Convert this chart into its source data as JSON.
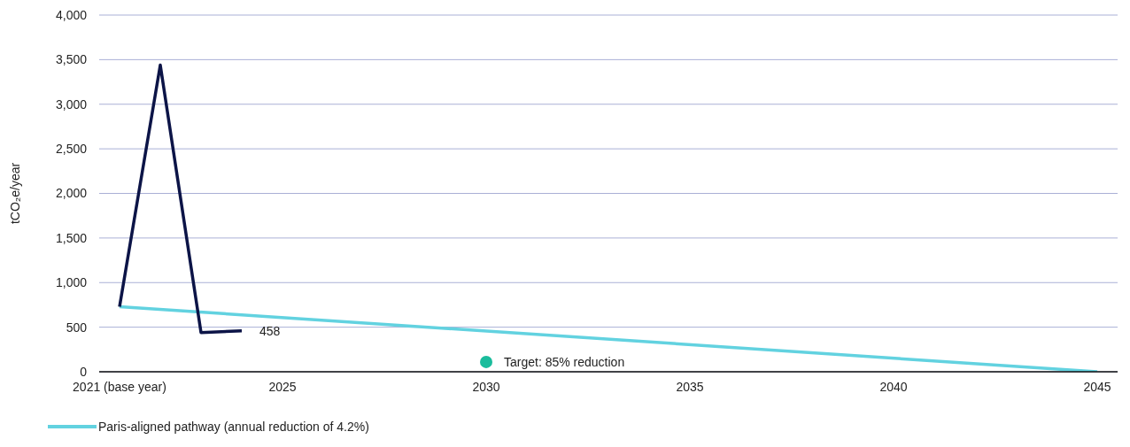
{
  "chart_data": {
    "type": "line",
    "ylabel": "tCO₂e/year",
    "xlim": [
      2020.5,
      2045.5
    ],
    "xticks": [
      {
        "value": 2021,
        "label": "2021 (base year)"
      },
      2025,
      2030,
      2035,
      2040,
      2045
    ],
    "ylim": [
      0,
      4000
    ],
    "yticks": [
      0,
      500,
      {
        "value": 1000,
        "label": "1,000"
      },
      {
        "value": 1500,
        "label": "1,500"
      },
      {
        "value": 2000,
        "label": "2,000"
      },
      {
        "value": 2500,
        "label": "2,500"
      },
      {
        "value": 3000,
        "label": "3,000"
      },
      {
        "value": 3500,
        "label": "3,500"
      },
      {
        "value": 4000,
        "label": "4,000"
      }
    ],
    "grid": "y",
    "legend": "bottom left",
    "marker": "none",
    "series": [
      {
        "name": "Paris-aligned pathway (annual reduction of 4.2%)",
        "color": "#62d2e0",
        "x": [
          2021,
          2045
        ],
        "values": [
          730,
          0
        ]
      },
      {
        "color": "#0c1447",
        "x": [
          2021,
          2022,
          2023,
          2024
        ],
        "values": [
          730,
          3440,
          440,
          458
        ],
        "value_labels": [
          null,
          null,
          null,
          "458"
        ]
      },
      {
        "type": "scatter",
        "color": "#1abc9c",
        "x": [
          2030
        ],
        "values": [
          110
        ],
        "marker": "circle"
      }
    ],
    "annotations": [
      {
        "text": "Target: 85% reduction",
        "x": 2030,
        "y": 110
      }
    ]
  }
}
